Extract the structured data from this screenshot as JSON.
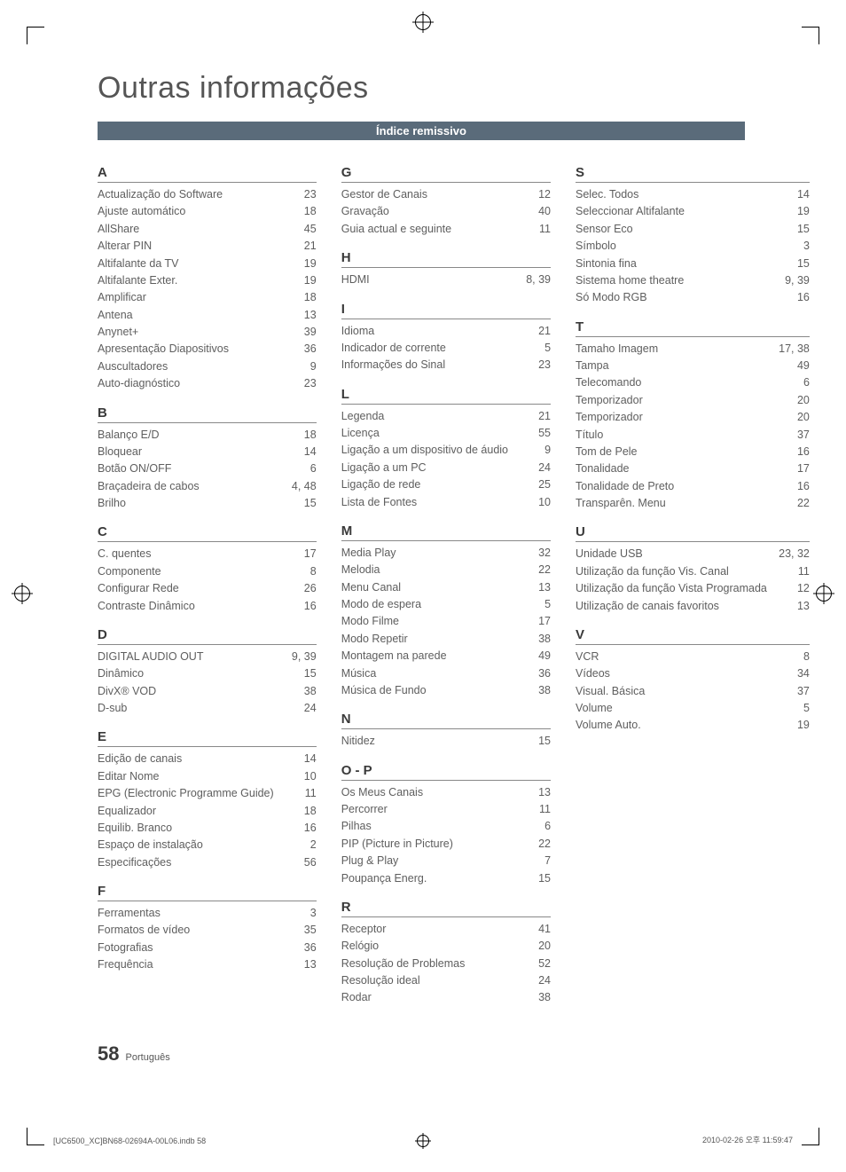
{
  "title": "Outras informações",
  "banner": "Índice remissivo",
  "page_number": "58",
  "page_lang": "Português",
  "footer_left": "[UC6500_XC]BN68-02694A-00L06.indb   58",
  "footer_right": "2010-02-26   오후 11:59:47",
  "columns": [
    {
      "sections": [
        {
          "letter": "A",
          "rows": [
            {
              "t": "Actualização do Software",
              "p": "23"
            },
            {
              "t": "Ajuste automático",
              "p": "18"
            },
            {
              "t": "AllShare",
              "p": "45"
            },
            {
              "t": "Alterar PIN",
              "p": "21"
            },
            {
              "t": "Altifalante da TV",
              "p": "19"
            },
            {
              "t": "Altifalante Exter.",
              "p": "19"
            },
            {
              "t": "Amplificar",
              "p": "18"
            },
            {
              "t": "Antena",
              "p": "13"
            },
            {
              "t": "Anynet+",
              "p": "39"
            },
            {
              "t": "Apresentação Diapositivos",
              "p": "36"
            },
            {
              "t": "Auscultadores",
              "p": "9"
            },
            {
              "t": "Auto-diagnóstico",
              "p": "23"
            }
          ]
        },
        {
          "letter": "B",
          "rows": [
            {
              "t": "Balanço E/D",
              "p": "18"
            },
            {
              "t": "Bloquear",
              "p": "14"
            },
            {
              "t": "Botão ON/OFF",
              "p": "6"
            },
            {
              "t": "Braçadeira de cabos",
              "p": "4, 48"
            },
            {
              "t": "Brilho",
              "p": "15"
            }
          ]
        },
        {
          "letter": "C",
          "rows": [
            {
              "t": "C. quentes",
              "p": "17"
            },
            {
              "t": "Componente",
              "p": "8"
            },
            {
              "t": "Configurar Rede",
              "p": "26"
            },
            {
              "t": "Contraste Dinâmico",
              "p": "16"
            }
          ]
        },
        {
          "letter": "D",
          "rows": [
            {
              "t": "DIGITAL AUDIO OUT",
              "p": "9, 39"
            },
            {
              "t": "Dinâmico",
              "p": "15"
            },
            {
              "t": "DivX® VOD",
              "p": "38"
            },
            {
              "t": "D-sub",
              "p": "24"
            }
          ]
        },
        {
          "letter": "E",
          "rows": [
            {
              "t": "Edição de canais",
              "p": "14"
            },
            {
              "t": "Editar Nome",
              "p": "10"
            },
            {
              "t": "EPG (Electronic Programme Guide)",
              "p": "11"
            },
            {
              "t": "Equalizador",
              "p": "18"
            },
            {
              "t": "Equilib. Branco",
              "p": "16"
            },
            {
              "t": "Espaço de instalação",
              "p": "2"
            },
            {
              "t": "Especificações",
              "p": "56"
            }
          ]
        },
        {
          "letter": "F",
          "rows": [
            {
              "t": "Ferramentas",
              "p": "3"
            },
            {
              "t": "Formatos de vídeo",
              "p": "35"
            },
            {
              "t": "Fotografias",
              "p": "36"
            },
            {
              "t": "Frequência",
              "p": "13"
            }
          ]
        }
      ]
    },
    {
      "sections": [
        {
          "letter": "G",
          "rows": [
            {
              "t": "Gestor de Canais",
              "p": "12"
            },
            {
              "t": "Gravação",
              "p": "40"
            },
            {
              "t": "Guia actual e seguinte",
              "p": "11"
            }
          ]
        },
        {
          "letter": "H",
          "rows": [
            {
              "t": "HDMI",
              "p": "8, 39"
            }
          ]
        },
        {
          "letter": "I",
          "rows": [
            {
              "t": "Idioma",
              "p": "21"
            },
            {
              "t": "Indicador de corrente",
              "p": "5"
            },
            {
              "t": "Informações do Sinal",
              "p": "23"
            }
          ]
        },
        {
          "letter": "L",
          "rows": [
            {
              "t": "Legenda",
              "p": "21"
            },
            {
              "t": "Licença",
              "p": "55"
            },
            {
              "t": "Ligação a um dispositivo de áudio",
              "p": "9"
            },
            {
              "t": "Ligação a um PC",
              "p": "24"
            },
            {
              "t": "Ligação de rede",
              "p": "25"
            },
            {
              "t": "Lista de Fontes",
              "p": "10"
            }
          ]
        },
        {
          "letter": "M",
          "rows": [
            {
              "t": "Media Play",
              "p": "32"
            },
            {
              "t": "Melodia",
              "p": "22"
            },
            {
              "t": "Menu Canal",
              "p": "13"
            },
            {
              "t": "Modo de espera",
              "p": "5"
            },
            {
              "t": "Modo Filme",
              "p": "17"
            },
            {
              "t": "Modo Repetir",
              "p": "38"
            },
            {
              "t": "Montagem na parede",
              "p": "49"
            },
            {
              "t": "Música",
              "p": "36"
            },
            {
              "t": "Música de Fundo",
              "p": "38"
            }
          ]
        },
        {
          "letter": "N",
          "rows": [
            {
              "t": "Nitidez",
              "p": "15"
            }
          ]
        },
        {
          "letter": "O - P",
          "rows": [
            {
              "t": "Os Meus Canais",
              "p": "13"
            },
            {
              "t": "Percorrer",
              "p": "11"
            },
            {
              "t": "Pilhas",
              "p": "6"
            },
            {
              "t": "PIP (Picture in Picture)",
              "p": "22"
            },
            {
              "t": "Plug & Play",
              "p": "7"
            },
            {
              "t": "Poupança Energ.",
              "p": "15"
            }
          ]
        },
        {
          "letter": "R",
          "rows": [
            {
              "t": "Receptor",
              "p": "41"
            },
            {
              "t": "Relógio",
              "p": "20"
            },
            {
              "t": "Resolução de Problemas",
              "p": "52"
            },
            {
              "t": "Resolução ideal",
              "p": "24"
            },
            {
              "t": "Rodar",
              "p": "38"
            }
          ]
        }
      ]
    },
    {
      "sections": [
        {
          "letter": "S",
          "rows": [
            {
              "t": "Selec. Todos",
              "p": "14"
            },
            {
              "t": "Seleccionar Altifalante",
              "p": "19"
            },
            {
              "t": "Sensor Eco",
              "p": "15"
            },
            {
              "t": "Símbolo",
              "p": "3"
            },
            {
              "t": "Sintonia fina",
              "p": "15"
            },
            {
              "t": "Sistema home theatre",
              "p": "9, 39"
            },
            {
              "t": "Só Modo RGB",
              "p": "16"
            }
          ]
        },
        {
          "letter": "T",
          "rows": [
            {
              "t": "Tamaho Imagem",
              "p": "17, 38"
            },
            {
              "t": "Tampa",
              "p": "49"
            },
            {
              "t": "Telecomando",
              "p": "6"
            },
            {
              "t": "Temporizador",
              "p": "20"
            },
            {
              "t": "Temporizador",
              "p": "20"
            },
            {
              "t": "Título",
              "p": "37"
            },
            {
              "t": "Tom de Pele",
              "p": "16"
            },
            {
              "t": "Tonalidade",
              "p": "17"
            },
            {
              "t": "Tonalidade de Preto",
              "p": "16"
            },
            {
              "t": "Transparên. Menu",
              "p": "22"
            }
          ]
        },
        {
          "letter": "U",
          "rows": [
            {
              "t": "Unidade USB",
              "p": "23, 32"
            },
            {
              "t": "Utilização da função Vis. Canal",
              "p": "11"
            },
            {
              "t": "Utilização da função Vista Programada",
              "p": "12"
            },
            {
              "t": "Utilização de canais favoritos",
              "p": "13"
            }
          ]
        },
        {
          "letter": "V",
          "rows": [
            {
              "t": "VCR",
              "p": "8"
            },
            {
              "t": "Vídeos",
              "p": "34"
            },
            {
              "t": "Visual. Básica",
              "p": "37"
            },
            {
              "t": "Volume",
              "p": "5"
            },
            {
              "t": "Volume Auto.",
              "p": "19"
            }
          ]
        }
      ]
    }
  ]
}
